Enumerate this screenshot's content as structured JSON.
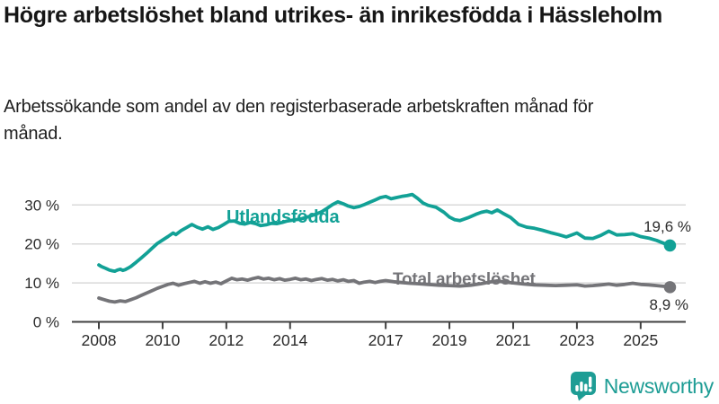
{
  "header": {
    "title": "Högre arbetslöshet bland utrikes- än inrikesfödda i Hässleholm",
    "subtitle": "Arbetssökande som andel av den registerbaserade arbetskraften månad för månad."
  },
  "footer": {
    "brand": "Newsworthy",
    "logo_icon": "bar-chart-speech-bubble-icon"
  },
  "colors": {
    "accent_teal": "#12A196",
    "series_gray": "#747478",
    "grid": "#D9D9D9",
    "axis": "#404040",
    "tick_text": "#2B2B2B",
    "value_label_text": "#2B2B2B",
    "brand_teal": "#1E9D95"
  },
  "chart_data": {
    "type": "line",
    "title": "Högre arbetslöshet bland utrikes- än inrikesfödda i Hässleholm",
    "subtitle": "Arbetssökande som andel av den registerbaserade arbetskraften månad för månad.",
    "xlabel": "",
    "ylabel": "",
    "grid": "horizontal",
    "legend_position": "inline-on-line",
    "xlim": [
      2007.85,
      2026.4
    ],
    "ylim": [
      0,
      34
    ],
    "x_tick_values": [
      2008,
      2010,
      2012,
      2014,
      2017,
      2019,
      2021,
      2023,
      2025
    ],
    "x_tick_labels": [
      "2008",
      "2010",
      "2012",
      "2014",
      "2017",
      "2019",
      "2021",
      "2023",
      "2025"
    ],
    "y_tick_values": [
      0,
      10,
      20,
      30
    ],
    "y_tick_labels": [
      "0 %",
      "10 %",
      "20 %",
      "30 %"
    ],
    "series": [
      {
        "name": "Utlandsfödda",
        "color": "#12A196",
        "end_value": 19.6,
        "end_label": "19,6 %",
        "points": [
          [
            2008.0,
            14.6
          ],
          [
            2008.08,
            14.2
          ],
          [
            2008.17,
            13.9
          ],
          [
            2008.25,
            13.6
          ],
          [
            2008.33,
            13.3
          ],
          [
            2008.42,
            13.1
          ],
          [
            2008.5,
            13.0
          ],
          [
            2008.58,
            13.3
          ],
          [
            2008.67,
            13.5
          ],
          [
            2008.75,
            13.2
          ],
          [
            2008.83,
            13.4
          ],
          [
            2008.92,
            13.8
          ],
          [
            2009.0,
            14.2
          ],
          [
            2009.17,
            15.3
          ],
          [
            2009.33,
            16.4
          ],
          [
            2009.5,
            17.6
          ],
          [
            2009.67,
            18.9
          ],
          [
            2009.83,
            20.1
          ],
          [
            2010.0,
            21.0
          ],
          [
            2010.17,
            21.9
          ],
          [
            2010.33,
            22.8
          ],
          [
            2010.42,
            22.4
          ],
          [
            2010.58,
            23.4
          ],
          [
            2010.75,
            24.2
          ],
          [
            2010.92,
            25.0
          ],
          [
            2011.08,
            24.3
          ],
          [
            2011.25,
            23.8
          ],
          [
            2011.42,
            24.4
          ],
          [
            2011.58,
            23.7
          ],
          [
            2011.75,
            24.2
          ],
          [
            2011.92,
            25.0
          ],
          [
            2012.08,
            25.8
          ],
          [
            2012.25,
            25.9
          ],
          [
            2012.42,
            25.3
          ],
          [
            2012.58,
            25.1
          ],
          [
            2012.75,
            25.5
          ],
          [
            2012.92,
            25.2
          ],
          [
            2013.08,
            24.7
          ],
          [
            2013.25,
            24.9
          ],
          [
            2013.42,
            25.3
          ],
          [
            2013.58,
            25.2
          ],
          [
            2013.75,
            25.5
          ],
          [
            2013.92,
            25.9
          ],
          [
            2014.08,
            26.1
          ],
          [
            2014.33,
            26.4
          ],
          [
            2014.58,
            27.0
          ],
          [
            2014.83,
            27.7
          ],
          [
            2015.0,
            28.3
          ],
          [
            2015.17,
            29.2
          ],
          [
            2015.33,
            30.1
          ],
          [
            2015.5,
            30.8
          ],
          [
            2015.67,
            30.3
          ],
          [
            2015.83,
            29.7
          ],
          [
            2016.0,
            29.3
          ],
          [
            2016.17,
            29.6
          ],
          [
            2016.33,
            30.1
          ],
          [
            2016.5,
            30.7
          ],
          [
            2016.67,
            31.3
          ],
          [
            2016.83,
            31.9
          ],
          [
            2017.0,
            32.2
          ],
          [
            2017.17,
            31.6
          ],
          [
            2017.33,
            31.9
          ],
          [
            2017.5,
            32.2
          ],
          [
            2017.67,
            32.4
          ],
          [
            2017.83,
            32.7
          ],
          [
            2018.0,
            31.7
          ],
          [
            2018.17,
            30.5
          ],
          [
            2018.33,
            29.9
          ],
          [
            2018.58,
            29.4
          ],
          [
            2018.83,
            28.1
          ],
          [
            2019.0,
            26.9
          ],
          [
            2019.17,
            26.2
          ],
          [
            2019.33,
            26.0
          ],
          [
            2019.58,
            26.7
          ],
          [
            2019.83,
            27.6
          ],
          [
            2020.0,
            28.1
          ],
          [
            2020.17,
            28.4
          ],
          [
            2020.33,
            28.0
          ],
          [
            2020.5,
            28.7
          ],
          [
            2020.67,
            27.9
          ],
          [
            2020.92,
            26.8
          ],
          [
            2021.17,
            25.0
          ],
          [
            2021.42,
            24.3
          ],
          [
            2021.67,
            24.0
          ],
          [
            2021.92,
            23.5
          ],
          [
            2022.17,
            22.9
          ],
          [
            2022.42,
            22.4
          ],
          [
            2022.67,
            21.8
          ],
          [
            2023.0,
            22.8
          ],
          [
            2023.25,
            21.5
          ],
          [
            2023.5,
            21.4
          ],
          [
            2023.75,
            22.2
          ],
          [
            2024.0,
            23.3
          ],
          [
            2024.25,
            22.3
          ],
          [
            2024.5,
            22.4
          ],
          [
            2024.75,
            22.6
          ],
          [
            2025.0,
            21.9
          ],
          [
            2025.25,
            21.5
          ],
          [
            2025.5,
            20.9
          ],
          [
            2025.75,
            20.1
          ],
          [
            2025.92,
            19.6
          ]
        ]
      },
      {
        "name": "Total arbetslöshet",
        "color": "#747478",
        "end_value": 8.9,
        "end_label": "8,9 %",
        "points": [
          [
            2008.0,
            6.1
          ],
          [
            2008.17,
            5.7
          ],
          [
            2008.33,
            5.3
          ],
          [
            2008.5,
            5.1
          ],
          [
            2008.67,
            5.4
          ],
          [
            2008.83,
            5.2
          ],
          [
            2009.0,
            5.7
          ],
          [
            2009.17,
            6.2
          ],
          [
            2009.33,
            6.8
          ],
          [
            2009.5,
            7.4
          ],
          [
            2009.67,
            8.0
          ],
          [
            2009.83,
            8.6
          ],
          [
            2010.0,
            9.1
          ],
          [
            2010.17,
            9.6
          ],
          [
            2010.33,
            9.9
          ],
          [
            2010.5,
            9.4
          ],
          [
            2010.67,
            9.8
          ],
          [
            2010.83,
            10.1
          ],
          [
            2011.0,
            10.4
          ],
          [
            2011.17,
            9.9
          ],
          [
            2011.33,
            10.3
          ],
          [
            2011.5,
            9.9
          ],
          [
            2011.67,
            10.2
          ],
          [
            2011.83,
            9.8
          ],
          [
            2012.0,
            10.5
          ],
          [
            2012.17,
            11.2
          ],
          [
            2012.33,
            10.8
          ],
          [
            2012.5,
            11.0
          ],
          [
            2012.67,
            10.7
          ],
          [
            2012.83,
            11.1
          ],
          [
            2013.0,
            11.4
          ],
          [
            2013.17,
            11.0
          ],
          [
            2013.33,
            11.2
          ],
          [
            2013.5,
            10.8
          ],
          [
            2013.67,
            11.1
          ],
          [
            2013.83,
            10.7
          ],
          [
            2014.0,
            10.9
          ],
          [
            2014.17,
            11.2
          ],
          [
            2014.33,
            10.8
          ],
          [
            2014.5,
            11.0
          ],
          [
            2014.67,
            10.6
          ],
          [
            2014.83,
            10.9
          ],
          [
            2015.0,
            11.1
          ],
          [
            2015.17,
            10.7
          ],
          [
            2015.33,
            10.9
          ],
          [
            2015.5,
            10.5
          ],
          [
            2015.67,
            10.8
          ],
          [
            2015.83,
            10.4
          ],
          [
            2016.0,
            10.6
          ],
          [
            2016.17,
            9.9
          ],
          [
            2016.33,
            10.2
          ],
          [
            2016.5,
            10.4
          ],
          [
            2016.67,
            10.1
          ],
          [
            2016.83,
            10.4
          ],
          [
            2017.0,
            10.6
          ],
          [
            2017.25,
            10.3
          ],
          [
            2017.5,
            10.1
          ],
          [
            2017.75,
            9.9
          ],
          [
            2018.0,
            9.8
          ],
          [
            2018.33,
            9.6
          ],
          [
            2018.67,
            9.4
          ],
          [
            2019.0,
            9.3
          ],
          [
            2019.33,
            9.2
          ],
          [
            2019.67,
            9.4
          ],
          [
            2020.0,
            9.8
          ],
          [
            2020.33,
            10.3
          ],
          [
            2020.5,
            10.5
          ],
          [
            2020.75,
            10.2
          ],
          [
            2021.0,
            10.0
          ],
          [
            2021.33,
            9.7
          ],
          [
            2021.67,
            9.5
          ],
          [
            2022.0,
            9.4
          ],
          [
            2022.33,
            9.3
          ],
          [
            2022.67,
            9.4
          ],
          [
            2023.0,
            9.5
          ],
          [
            2023.25,
            9.2
          ],
          [
            2023.5,
            9.3
          ],
          [
            2023.75,
            9.5
          ],
          [
            2024.0,
            9.7
          ],
          [
            2024.25,
            9.4
          ],
          [
            2024.5,
            9.6
          ],
          [
            2024.75,
            9.9
          ],
          [
            2025.0,
            9.6
          ],
          [
            2025.25,
            9.5
          ],
          [
            2025.5,
            9.3
          ],
          [
            2025.75,
            9.1
          ],
          [
            2025.92,
            8.9
          ]
        ]
      }
    ]
  }
}
